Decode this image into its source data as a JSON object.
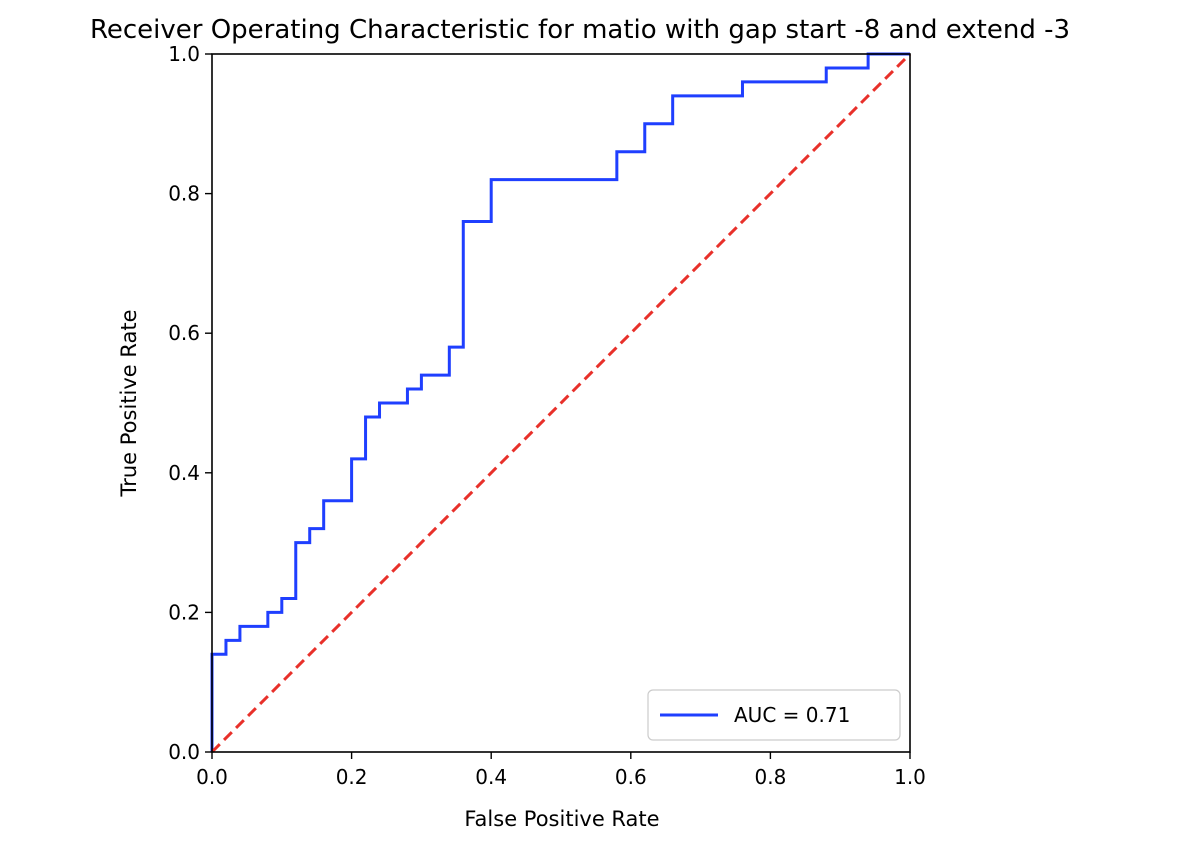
{
  "chart_data": {
    "type": "line",
    "title": "Receiver Operating Characteristic for matio with gap start -8 and extend -3",
    "xlabel": "False Positive Rate",
    "ylabel": "True Positive Rate",
    "xlim": [
      0.0,
      1.0
    ],
    "ylim": [
      0.0,
      1.0
    ],
    "xticks": [
      "0.0",
      "0.2",
      "0.4",
      "0.6",
      "0.8",
      "1.0"
    ],
    "yticks": [
      "0.0",
      "0.2",
      "0.4",
      "0.6",
      "0.8",
      "1.0"
    ],
    "grid": false,
    "legend_position": "lower-right",
    "series": [
      {
        "name": "AUC = 0.71",
        "color": "#1f3fff",
        "style": "solid",
        "step": true,
        "x": [
          0.0,
          0.0,
          0.02,
          0.02,
          0.04,
          0.04,
          0.08,
          0.08,
          0.1,
          0.1,
          0.12,
          0.12,
          0.14,
          0.14,
          0.16,
          0.16,
          0.2,
          0.2,
          0.22,
          0.22,
          0.24,
          0.24,
          0.28,
          0.28,
          0.3,
          0.3,
          0.34,
          0.34,
          0.36,
          0.36,
          0.4,
          0.4,
          0.58,
          0.58,
          0.62,
          0.62,
          0.66,
          0.66,
          0.76,
          0.76,
          0.88,
          0.88,
          0.94,
          0.94,
          1.0
        ],
        "y": [
          0.0,
          0.14,
          0.14,
          0.16,
          0.16,
          0.18,
          0.18,
          0.2,
          0.2,
          0.22,
          0.22,
          0.3,
          0.3,
          0.32,
          0.32,
          0.36,
          0.36,
          0.42,
          0.42,
          0.48,
          0.48,
          0.5,
          0.5,
          0.52,
          0.52,
          0.54,
          0.54,
          0.58,
          0.58,
          0.76,
          0.76,
          0.82,
          0.82,
          0.86,
          0.86,
          0.9,
          0.9,
          0.94,
          0.94,
          0.96,
          0.96,
          0.98,
          0.98,
          1.0,
          1.0
        ]
      },
      {
        "name": "",
        "color": "#e8302a",
        "style": "dashed",
        "x": [
          0.0,
          1.0
        ],
        "y": [
          0.0,
          1.0
        ]
      }
    ]
  }
}
